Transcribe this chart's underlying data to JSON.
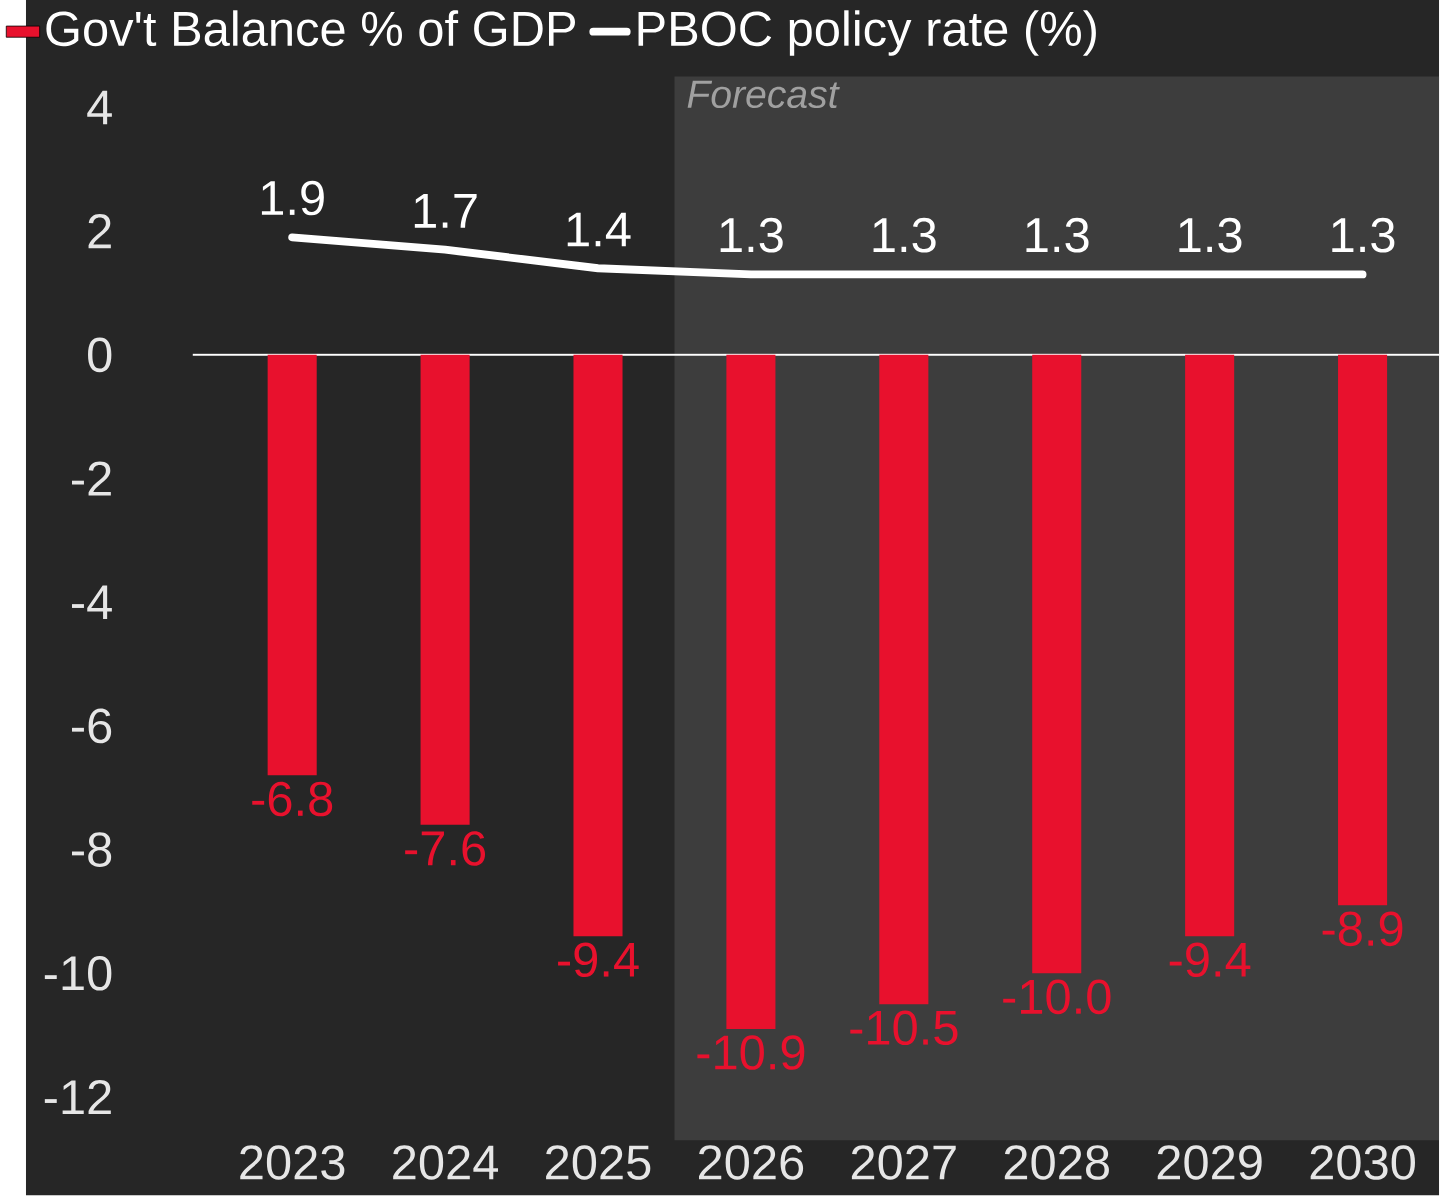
{
  "chart_data": {
    "type": "bar",
    "categories": [
      "2023",
      "2024",
      "2025",
      "2026",
      "2027",
      "2028",
      "2029",
      "2030"
    ],
    "series": [
      {
        "name": "Gov't Balance % of GDP",
        "color": "#e8112d",
        "values": [
          -6.8,
          -7.6,
          -9.4,
          -10.9,
          -10.5,
          -10.0,
          -9.4,
          -8.9
        ],
        "value_labels": [
          "-6.8",
          "-7.6",
          "-9.4",
          "-10.9",
          "-10.5",
          "-10.0",
          "-9.4",
          "-8.9"
        ]
      },
      {
        "name": "PBOC policy rate (%)",
        "type": "line",
        "color": "#ffffff",
        "values": [
          1.9,
          1.7,
          1.4,
          1.3,
          1.3,
          1.3,
          1.3,
          1.3
        ],
        "value_labels": [
          "1.9",
          "1.7",
          "1.4",
          "1.3",
          "1.3",
          "1.3",
          "1.3",
          "1.3"
        ]
      }
    ],
    "ylim": [
      -12.7,
      4.5
    ],
    "yticks": [
      -12,
      -10,
      -8,
      -6,
      -4,
      -2,
      0,
      2,
      4
    ],
    "bands": [
      {
        "axis": "x",
        "from": "2026",
        "to": "2030",
        "label": "Forecast",
        "color": "#3d3d3d"
      }
    ],
    "legend": "top left",
    "marker": "none",
    "line_style": "solid"
  }
}
